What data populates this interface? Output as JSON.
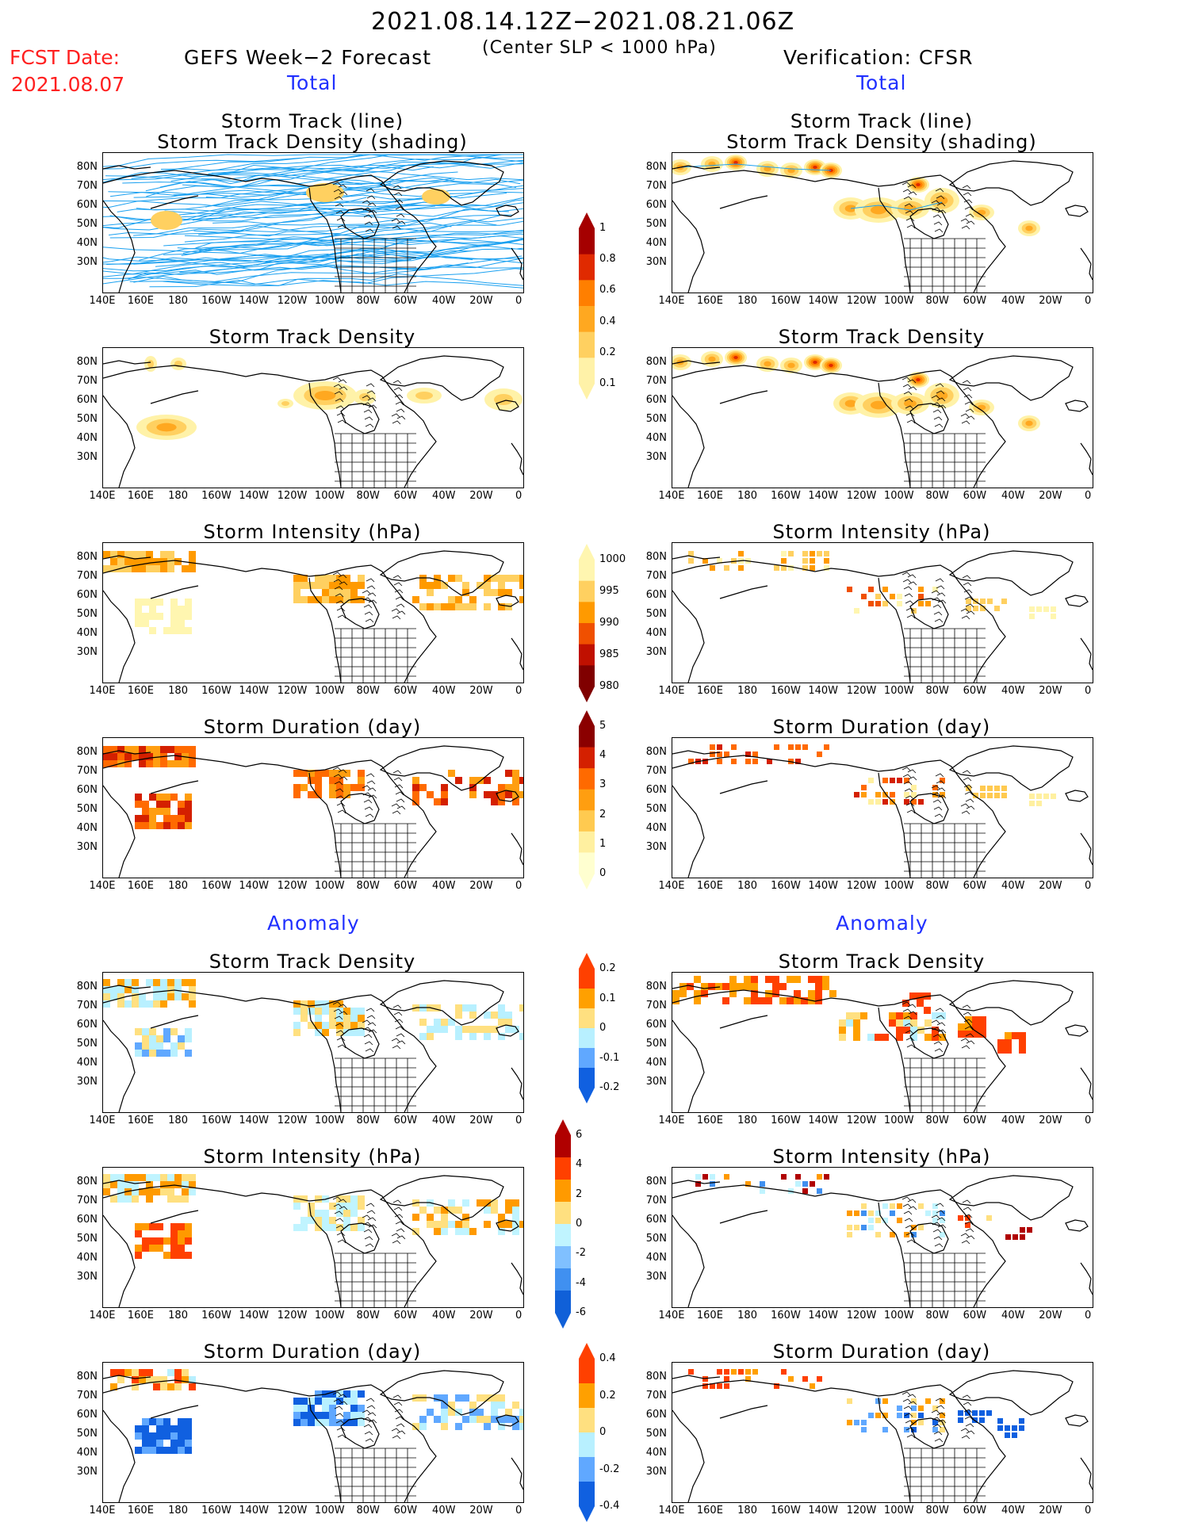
{
  "header": {
    "period": "2021.08.14.12Z−2021.08.21.06Z",
    "criterion": "(Center SLP < 1000 hPa)",
    "fcst_label": "FCST Date:",
    "fcst_date": "2021.08.07",
    "left_source": "GEFS Week−2 Forecast",
    "right_source": "Verification: CFSR",
    "section_total": "Total",
    "section_anomaly": "Anomaly"
  },
  "panel_titles": {
    "track_l1": "Storm Track (line)",
    "track_l2": "Storm Track Density (shading)",
    "density": "Storm Track Density",
    "intensity": "Storm Intensity (hPa)",
    "duration": "Storm Duration (day)"
  },
  "axes": {
    "lat_labels": [
      "80N",
      "70N",
      "60N",
      "50N",
      "40N",
      "30N"
    ],
    "lon_labels": [
      "140E",
      "160E",
      "180",
      "160W",
      "140W",
      "120W",
      "100W",
      "80W",
      "60W",
      "40W",
      "20W",
      "0"
    ]
  },
  "colorbars": [
    {
      "id": "total-density",
      "labels": [
        "1",
        "0.8",
        "0.6",
        "0.4",
        "0.2",
        "0.1"
      ],
      "colors": [
        "#a50000",
        "#e02a00",
        "#ff7f00",
        "#ffa820",
        "#ffd060",
        "#fff2a8"
      ]
    },
    {
      "id": "total-intensity",
      "labels": [
        "1000",
        "995",
        "990",
        "985",
        "980"
      ],
      "colors": [
        "#fff6b0",
        "#ffd060",
        "#ff9a00",
        "#f05000",
        "#c01000",
        "#800000"
      ]
    },
    {
      "id": "total-duration",
      "labels": [
        "5",
        "4",
        "3",
        "2",
        "1",
        "0"
      ],
      "colors": [
        "#8b0000",
        "#d42000",
        "#ff6a00",
        "#ff9e10",
        "#ffca50",
        "#fff0a0",
        "#ffffd0"
      ]
    },
    {
      "id": "anom-density",
      "labels": [
        "0.2",
        "0.1",
        "0",
        "-0.1",
        "-0.2"
      ],
      "colors": [
        "#ff4000",
        "#ffa000",
        "#ffe080",
        "#b8f0ff",
        "#60a8ff",
        "#1060e0"
      ]
    },
    {
      "id": "anom-intensity",
      "labels": [
        "6",
        "4",
        "2",
        "0",
        "-2",
        "-4",
        "-6"
      ],
      "colors": [
        "#b00000",
        "#ff4000",
        "#ff9a00",
        "#ffe080",
        "#c0f4ff",
        "#80c0ff",
        "#4090f0",
        "#1060d8"
      ]
    },
    {
      "id": "anom-duration",
      "labels": [
        "0.4",
        "0.2",
        "0",
        "-0.2",
        "-0.4"
      ],
      "colors": [
        "#ff4000",
        "#ffa000",
        "#ffe080",
        "#b8f0ff",
        "#60a8ff",
        "#1060e0"
      ]
    }
  ],
  "colors": {
    "land": "#000000",
    "track": "#1aa0f0",
    "title_red": "#ff2020",
    "title_blue": "#2030ff"
  }
}
